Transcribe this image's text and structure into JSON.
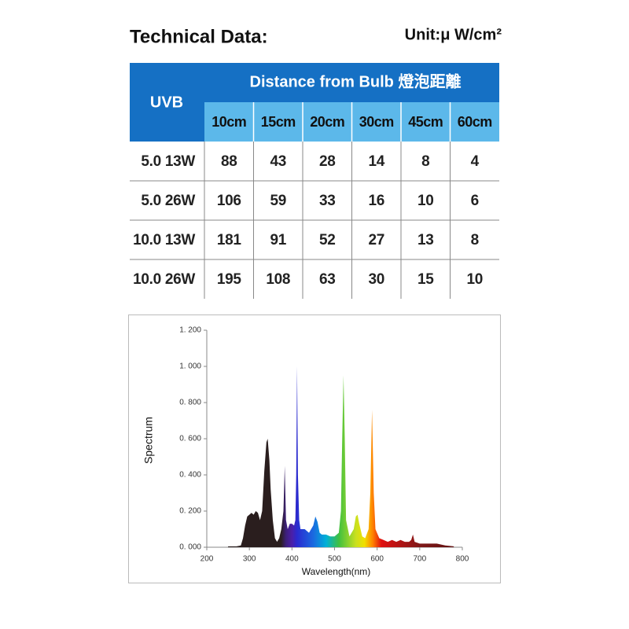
{
  "header": {
    "title": "Technical Data:",
    "unit": "Unit:μ W/cm²"
  },
  "table": {
    "corner": "UVB",
    "group_header": "Distance from Bulb 燈泡距離",
    "columns": [
      "10cm",
      "15cm",
      "20cm",
      "30cm",
      "45cm",
      "60cm"
    ],
    "rows": [
      {
        "label": "5.0  13W",
        "cells": [
          88,
          43,
          28,
          14,
          8,
          4
        ]
      },
      {
        "label": "5.0  26W",
        "cells": [
          106,
          59,
          33,
          16,
          10,
          6
        ]
      },
      {
        "label": "10.0  13W",
        "cells": [
          181,
          91,
          52,
          27,
          13,
          8
        ]
      },
      {
        "label": "10.0  26W",
        "cells": [
          195,
          108,
          63,
          30,
          15,
          10
        ]
      }
    ]
  },
  "chart_data": {
    "type": "area",
    "x_label": "Wavelength(nm)",
    "y_label": "Spectrum",
    "x": [
      250,
      270,
      280,
      285,
      290,
      295,
      300,
      305,
      310,
      315,
      320,
      325,
      330,
      335,
      340,
      343,
      347,
      350,
      355,
      360,
      365,
      370,
      375,
      380,
      383,
      386,
      390,
      395,
      400,
      405,
      408,
      410,
      412,
      414,
      417,
      420,
      430,
      440,
      450,
      455,
      460,
      465,
      470,
      480,
      490,
      500,
      510,
      515,
      518,
      521,
      524,
      527,
      535,
      545,
      550,
      554,
      558,
      565,
      572,
      580,
      584,
      588,
      592,
      596,
      605,
      615,
      625,
      635,
      645,
      655,
      665,
      675,
      680,
      684,
      688,
      700,
      720,
      740,
      760,
      780
    ],
    "values": [
      0.005,
      0.005,
      0.01,
      0.05,
      0.12,
      0.17,
      0.18,
      0.19,
      0.18,
      0.2,
      0.19,
      0.15,
      0.2,
      0.42,
      0.58,
      0.6,
      0.48,
      0.32,
      0.15,
      0.05,
      0.03,
      0.05,
      0.1,
      0.2,
      0.45,
      0.15,
      0.1,
      0.13,
      0.13,
      0.12,
      0.15,
      0.4,
      1.0,
      0.4,
      0.15,
      0.1,
      0.1,
      0.08,
      0.12,
      0.17,
      0.14,
      0.08,
      0.07,
      0.07,
      0.06,
      0.06,
      0.08,
      0.2,
      0.6,
      0.95,
      0.6,
      0.15,
      0.06,
      0.1,
      0.17,
      0.18,
      0.13,
      0.06,
      0.05,
      0.1,
      0.3,
      0.76,
      0.3,
      0.1,
      0.05,
      0.04,
      0.03,
      0.04,
      0.03,
      0.04,
      0.03,
      0.03,
      0.04,
      0.07,
      0.03,
      0.02,
      0.02,
      0.02,
      0.01,
      0.005
    ],
    "xlim": [
      200,
      800
    ],
    "ylim": [
      0,
      1.2
    ],
    "xticks": [
      200,
      300,
      400,
      500,
      600,
      700,
      800
    ],
    "yticks": [
      {
        "value": 0,
        "label": "0. 000"
      },
      {
        "value": 0.2,
        "label": "0. 200"
      },
      {
        "value": 0.4,
        "label": "0. 400"
      },
      {
        "value": 0.6,
        "label": "0. 600"
      },
      {
        "value": 0.8,
        "label": "0. 800"
      },
      {
        "value": 1.0,
        "label": "1. 000"
      },
      {
        "value": 1.2,
        "label": "1. 200"
      }
    ]
  }
}
